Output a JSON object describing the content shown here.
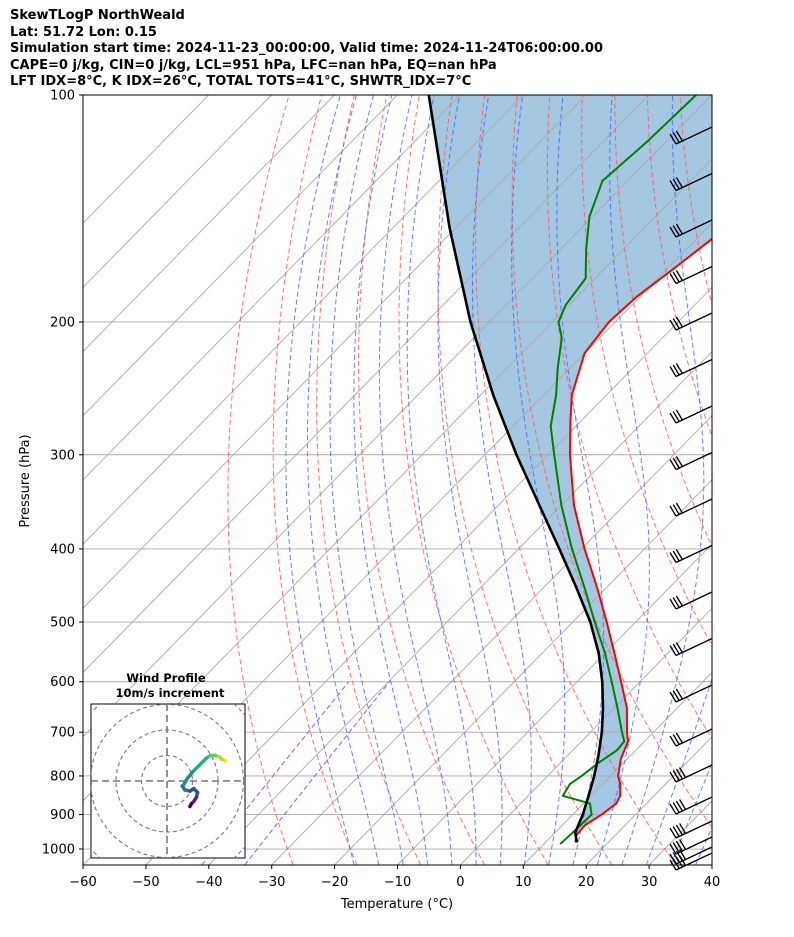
{
  "header": {
    "line1": "SkewTLogP NorthWeald",
    "line2": "Lat: 51.72   Lon: 0.15",
    "line3": "Simulation start time: 2024-11-23_00:00:00, Valid time: 2024-11-24T06:00:00.00",
    "line4": "CAPE=0 j/kg, CIN=0 j/kg, LCL=951 hPa, LFC=nan hPa, EQ=nan hPa",
    "line5": "LFT IDX=8°C, K IDX=26°C, TOTAL TOTS=41°C, SHWTR_IDX=7°C"
  },
  "chart_data": {
    "type": "line",
    "title": "SkewTLogP NorthWeald",
    "xlabel": "Temperature (°C)",
    "ylabel": "Pressure (hPa)",
    "xlim": [
      -60,
      40
    ],
    "ylim": [
      1050,
      100
    ],
    "y_scale": "log",
    "x_ticks": [
      "−60",
      "−50",
      "−40",
      "−30",
      "−20",
      "−10",
      "0",
      "10",
      "20",
      "30",
      "40"
    ],
    "y_ticks": [
      "100",
      "200",
      "300",
      "400",
      "500",
      "600",
      "700",
      "800",
      "900",
      "1000"
    ],
    "grid": true,
    "colors": {
      "temperature": "#ff0000",
      "dewpoint": "#008000",
      "parcel": "#000000",
      "shading": "#a3c8e0",
      "dry_adiabats": "#ff5b5b",
      "moist_adiabats": "#4c6bff",
      "mixing_ratio": "#8a2be2",
      "isotherms": "#aaaaaa"
    },
    "series": [
      {
        "key": "temperature",
        "pressure": [
          980,
          960,
          930,
          900,
          870,
          850,
          820,
          800,
          760,
          720,
          700,
          650,
          600,
          550,
          500,
          450,
          400,
          350,
          300,
          270,
          250,
          220,
          200,
          185,
          170,
          150,
          140,
          125,
          110,
          100
        ],
        "values": [
          14.8,
          13.8,
          13.6,
          14.6,
          15.2,
          14.6,
          12.8,
          11.2,
          9.0,
          7.4,
          5.8,
          2.0,
          -3.0,
          -8.5,
          -14.6,
          -21.5,
          -29.5,
          -38.0,
          -46.5,
          -51.8,
          -55.5,
          -60.0,
          -61.0,
          -60.5,
          -59.0,
          -57.0,
          -58.5,
          -58.5,
          -57.0,
          -56.5
        ]
      },
      {
        "key": "dewpoint",
        "pressure": [
          985,
          950,
          900,
          870,
          850,
          820,
          800,
          770,
          740,
          720,
          700,
          650,
          600,
          550,
          500,
          450,
          400,
          350,
          300,
          275,
          250,
          230,
          210,
          200,
          190,
          175,
          160,
          145,
          130,
          115,
          100
        ],
        "values": [
          12.6,
          12.8,
          13.0,
          11.0,
          5.5,
          4.8,
          5.4,
          6.0,
          7.0,
          6.8,
          5.0,
          0.5,
          -4.5,
          -10.0,
          -16.5,
          -23.5,
          -31.5,
          -40.0,
          -49.0,
          -54.0,
          -58.0,
          -62.0,
          -66.0,
          -69.0,
          -70.5,
          -71.5,
          -76.0,
          -80.5,
          -84.0,
          -83.0,
          -82.5
        ]
      },
      {
        "key": "parcel",
        "pressure": [
          980,
          951,
          900,
          850,
          800,
          750,
          700,
          650,
          600,
          550,
          500,
          450,
          400,
          350,
          300,
          250,
          200,
          150,
          100
        ],
        "values": [
          15.0,
          13.2,
          11.6,
          9.6,
          7.4,
          4.8,
          1.8,
          -1.8,
          -6.0,
          -11.0,
          -17.2,
          -24.8,
          -33.5,
          -43.5,
          -55.0,
          -68.0,
          -83.0,
          -101.0,
          -125.0
        ]
      }
    ],
    "hodograph": {
      "title": "Wind Profile",
      "subtitle": "10m/s increment",
      "u": [
        9.0,
        9.5,
        10.5,
        11.5,
        12.0,
        10.5,
        9.0,
        7.0,
        6.0,
        6.5,
        8.0,
        10.0,
        13.0,
        15.5,
        17.0,
        18.0,
        19.0,
        20.5,
        21.5,
        22.5,
        23.0
      ],
      "v": [
        -10.0,
        -9.0,
        -8.0,
        -6.5,
        -4.5,
        -3.0,
        -4.0,
        -3.5,
        -2.0,
        -1.5,
        1.0,
        3.5,
        6.5,
        9.0,
        10.0,
        10.0,
        10.0,
        9.5,
        8.5,
        8.0,
        8.0
      ]
    }
  }
}
